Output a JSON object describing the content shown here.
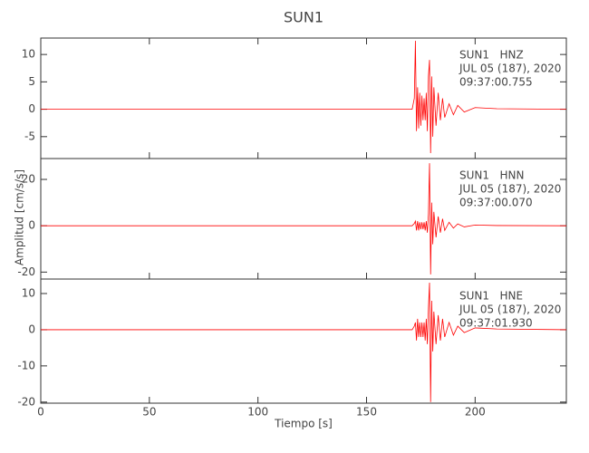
{
  "chart_data": {
    "type": "line",
    "title": "SUN1",
    "xlabel": "Tiempo [s]",
    "ylabel": "Amplitud [cm/s/s]",
    "color": "#ff0000",
    "xlim": [
      0,
      242
    ],
    "xticks": [
      0,
      50,
      100,
      150,
      200
    ],
    "x": [
      0,
      171,
      172,
      172.5,
      173,
      173.5,
      174,
      174.5,
      175,
      175.5,
      176,
      176.5,
      177,
      177.5,
      178,
      178.5,
      179,
      179.5,
      180,
      180.5,
      181,
      182,
      183,
      184,
      185,
      186,
      188,
      190,
      192,
      195,
      200,
      210,
      242
    ],
    "panels": [
      {
        "ylim": [
          -9,
          13
        ],
        "yticks": [
          -5,
          0,
          5,
          10
        ],
        "annotation": [
          "SUN1   HNZ",
          "JUL 05 (187), 2020",
          "09:37:00.755"
        ],
        "values": [
          0,
          0,
          2,
          12.5,
          -4,
          4,
          -3.5,
          3,
          -3,
          2.5,
          -2,
          2,
          -2,
          3,
          -4,
          6,
          9,
          -8,
          6,
          -5,
          4,
          -3,
          3,
          -2,
          2,
          -1.5,
          1,
          -1,
          0.7,
          -0.5,
          0.3,
          0.1,
          0
        ]
      },
      {
        "ylim": [
          -23,
          29
        ],
        "yticks": [
          -20,
          0,
          20
        ],
        "annotation": [
          "SUN1   HNN",
          "JUL 05 (187), 2020",
          "09:37:00.070"
        ],
        "values": [
          0,
          0,
          1,
          2,
          -2,
          2,
          -2,
          1.5,
          -1.5,
          1.5,
          -1.5,
          1.5,
          -2,
          2,
          -3,
          5,
          27,
          -21,
          10,
          -8,
          6,
          -5,
          4,
          -3,
          3,
          -2,
          1.5,
          -1,
          0.8,
          -0.5,
          0.3,
          0.1,
          0
        ]
      },
      {
        "ylim": [
          -20.3,
          14
        ],
        "yticks": [
          -20,
          -10,
          0,
          10
        ],
        "annotation": [
          "SUN1   HNE",
          "JUL 05 (187), 2020",
          "09:37:01.930"
        ],
        "values": [
          0,
          0,
          1,
          2,
          -3,
          3,
          -2,
          2,
          -2,
          2,
          -2,
          2,
          -3,
          3,
          -4,
          6,
          13,
          -20,
          8,
          -6,
          5,
          -4,
          4,
          -3,
          3,
          -2,
          2,
          -1.5,
          1,
          -0.8,
          0.5,
          0.2,
          0
        ]
      }
    ]
  }
}
